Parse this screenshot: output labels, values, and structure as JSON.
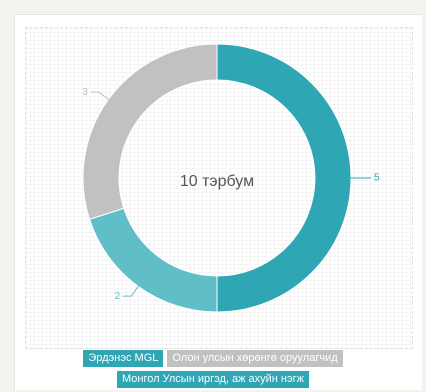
{
  "chart_data": {
    "type": "pie",
    "donut": true,
    "center_label": "10 тэрбум",
    "slices": [
      {
        "name": "Эрдэнэс MGL",
        "value": 5,
        "color": "#2ea6b4"
      },
      {
        "name": "Монгол Улсын иргэд, аж ахуйн нэгж",
        "value": 2,
        "color": "#5fbec7"
      },
      {
        "name": "Олон улсын хөрөнгө оруулагчид",
        "value": 3,
        "color": "#c1c1c1"
      }
    ],
    "legend_placement": "bottom"
  },
  "legend": {
    "row1": [
      "Эрдэнэс MGL",
      "Олон улсын хөрөнгө оруулагчид"
    ],
    "row2": [
      "Монгол Улсын иргэд, аж ахуйн нэгж"
    ]
  }
}
